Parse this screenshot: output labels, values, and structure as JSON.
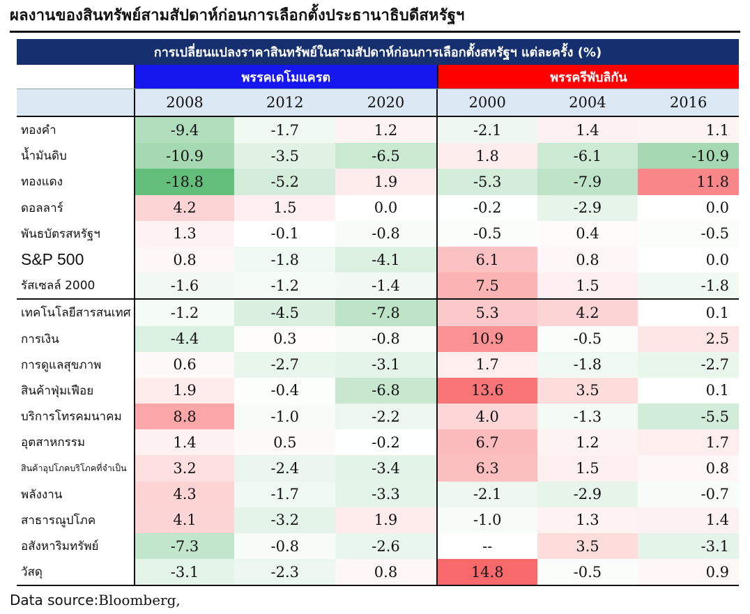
{
  "page_title": "ผลงานของสินทรัพย์สามสัปดาห์ก่อนการเลือกตั้งประธานาธิบดีสหรัฐฯ",
  "source": {
    "prefix": "Data source:",
    "name": "Bloomberg,"
  },
  "chart_data": {
    "type": "heatmap",
    "title": "การเปลี่ยนแปลงราคาสินทรัพย์ในสามสัปดาห์ก่อนการเลือกตั้งสหรัฐฯ แต่ละครั้ง (%)",
    "groups": [
      {
        "name": "พรรคเดโมแครต",
        "color": "#1616ee",
        "years": [
          "2008",
          "2012",
          "2020"
        ]
      },
      {
        "name": "พรรครีพับลิกัน",
        "color": "#ff0000",
        "years": [
          "2000",
          "2004",
          "2016"
        ]
      }
    ],
    "color_scale": {
      "negative": "#63be7b",
      "zero": "#ffffff",
      "positive": "#f8696b"
    },
    "rows": [
      {
        "label": "ทองคำ",
        "values": [
          "-9.4",
          "-1.7",
          "1.2",
          "-2.1",
          "1.4",
          "1.1"
        ]
      },
      {
        "label": "น้ำมันดิบ",
        "values": [
          "-10.9",
          "-3.5",
          "-6.5",
          "1.8",
          "-6.1",
          "-10.9"
        ]
      },
      {
        "label": "ทองแดง",
        "values": [
          "-18.8",
          "-5.2",
          "1.9",
          "-5.3",
          "-7.9",
          "11.8"
        ]
      },
      {
        "label": "ดอลลาร์",
        "values": [
          "4.2",
          "1.5",
          "0.0",
          "-0.2",
          "-2.9",
          "0.0"
        ]
      },
      {
        "label": "พันธบัตรสหรัฐฯ",
        "values": [
          "1.3",
          "-0.1",
          "-0.8",
          "-0.5",
          "0.4",
          "-0.5"
        ]
      },
      {
        "label": "S&P 500",
        "values": [
          "0.8",
          "-1.8",
          "-4.1",
          "6.1",
          "0.8",
          "0.0"
        ]
      },
      {
        "label": "รัสเซลล์ 2000",
        "values": [
          "-1.6",
          "-1.2",
          "-1.4",
          "7.5",
          "1.5",
          "-1.8"
        ]
      },
      {
        "label": "เทคโนโลยีสารสนเทศ",
        "values": [
          "-1.2",
          "-4.5",
          "-7.8",
          "5.3",
          "4.2",
          "0.1"
        ]
      },
      {
        "label": "การเงิน",
        "values": [
          "-4.4",
          "0.3",
          "-0.8",
          "10.9",
          "-0.5",
          "2.5"
        ]
      },
      {
        "label": "การดูแลสุขภาพ",
        "values": [
          "0.6",
          "-2.7",
          "-3.1",
          "1.7",
          "-1.8",
          "-2.7"
        ]
      },
      {
        "label": "สินค้าฟุ่มเฟือย",
        "values": [
          "1.9",
          "-0.4",
          "-6.8",
          "13.6",
          "3.5",
          "0.1"
        ]
      },
      {
        "label": "บริการโทรคมนาคม",
        "values": [
          "8.8",
          "-1.0",
          "-2.2",
          "4.0",
          "-1.3",
          "-5.5"
        ]
      },
      {
        "label": "อุตสาหกรรม",
        "values": [
          "1.4",
          "0.5",
          "-0.2",
          "6.7",
          "1.2",
          "1.7"
        ]
      },
      {
        "label": "สินค้าอุปโภคบริโภคที่จำเป็น",
        "values": [
          "3.2",
          "-2.4",
          "-3.4",
          "6.3",
          "1.5",
          "0.8"
        ]
      },
      {
        "label": "พลังงาน",
        "values": [
          "4.3",
          "-1.7",
          "-3.3",
          "-2.1",
          "-2.9",
          "-0.7"
        ]
      },
      {
        "label": "สาธารณูปโภค",
        "values": [
          "4.1",
          "-3.2",
          "1.9",
          "-1.0",
          "1.3",
          "1.4"
        ]
      },
      {
        "label": "อสังหาริมทรัพย์",
        "values": [
          "-7.3",
          "-0.8",
          "-2.6",
          "--",
          "3.5",
          "-3.1"
        ]
      },
      {
        "label": "วัสดุ",
        "values": [
          "-3.1",
          "-2.3",
          "0.8",
          "14.8",
          "-0.5",
          "0.9"
        ]
      }
    ]
  }
}
